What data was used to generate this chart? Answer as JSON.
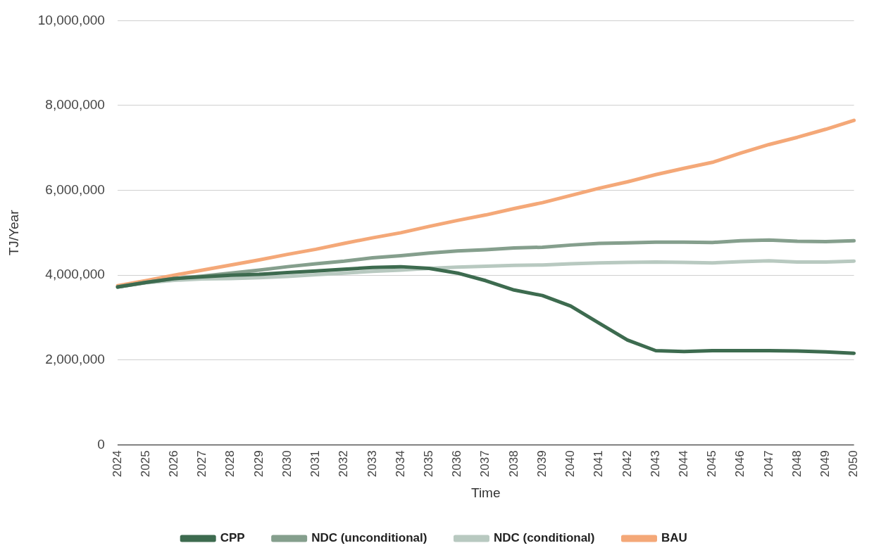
{
  "chart_data": {
    "type": "line",
    "xlabel": "Time",
    "ylabel": "TJ/Year",
    "categories": [
      "2024",
      "2025",
      "2026",
      "2027",
      "2028",
      "2029",
      "2030",
      "2031",
      "2032",
      "2033",
      "2034",
      "2035",
      "2036",
      "2037",
      "2038",
      "2039",
      "2040",
      "2041",
      "2042",
      "2043",
      "2044",
      "2045",
      "2046",
      "2047",
      "2048",
      "2049",
      "2050"
    ],
    "series": [
      {
        "name": "CPP",
        "color": "#3d6b4f",
        "values": [
          3720000,
          3830000,
          3920000,
          3960000,
          4000000,
          4020000,
          4060000,
          4100000,
          4140000,
          4180000,
          4200000,
          4160000,
          4050000,
          3870000,
          3650000,
          3520000,
          3270000,
          2870000,
          2470000,
          2220000,
          2200000,
          2220000,
          2220000,
          2220000,
          2210000,
          2190000,
          2160000
        ]
      },
      {
        "name": "NDC (unconditional)",
        "color": "#859f8d",
        "values": [
          3720000,
          3830000,
          3920000,
          3980000,
          4050000,
          4120000,
          4200000,
          4270000,
          4330000,
          4410000,
          4460000,
          4520000,
          4570000,
          4600000,
          4640000,
          4660000,
          4710000,
          4750000,
          4760000,
          4780000,
          4780000,
          4770000,
          4810000,
          4830000,
          4800000,
          4790000,
          4810000
        ]
      },
      {
        "name": "NDC (conditional)",
        "color": "#b8c9c0",
        "values": [
          3720000,
          3820000,
          3880000,
          3910000,
          3920000,
          3940000,
          3970000,
          4010000,
          4050000,
          4090000,
          4120000,
          4160000,
          4190000,
          4210000,
          4230000,
          4240000,
          4270000,
          4290000,
          4300000,
          4310000,
          4300000,
          4290000,
          4320000,
          4340000,
          4310000,
          4310000,
          4330000
        ]
      },
      {
        "name": "BAU",
        "color": "#f4a878",
        "values": [
          3750000,
          3870000,
          4000000,
          4120000,
          4240000,
          4360000,
          4490000,
          4610000,
          4750000,
          4880000,
          5000000,
          5150000,
          5290000,
          5420000,
          5570000,
          5710000,
          5880000,
          6050000,
          6200000,
          6370000,
          6520000,
          6660000,
          6880000,
          7080000,
          7250000,
          7440000,
          7650000
        ]
      }
    ],
    "ylim": [
      0,
      10000000
    ],
    "yticks": [
      {
        "value": 0,
        "label": "0"
      },
      {
        "value": 2000000,
        "label": "2,000,000"
      },
      {
        "value": 4000000,
        "label": "4,000,000"
      },
      {
        "value": 6000000,
        "label": "6,000,000"
      },
      {
        "value": 8000000,
        "label": "8,000,000"
      },
      {
        "value": 10000000,
        "label": "10,000,000"
      }
    ],
    "grid": "y",
    "legend": "bottom",
    "marker": "none",
    "line_style": "solid"
  }
}
